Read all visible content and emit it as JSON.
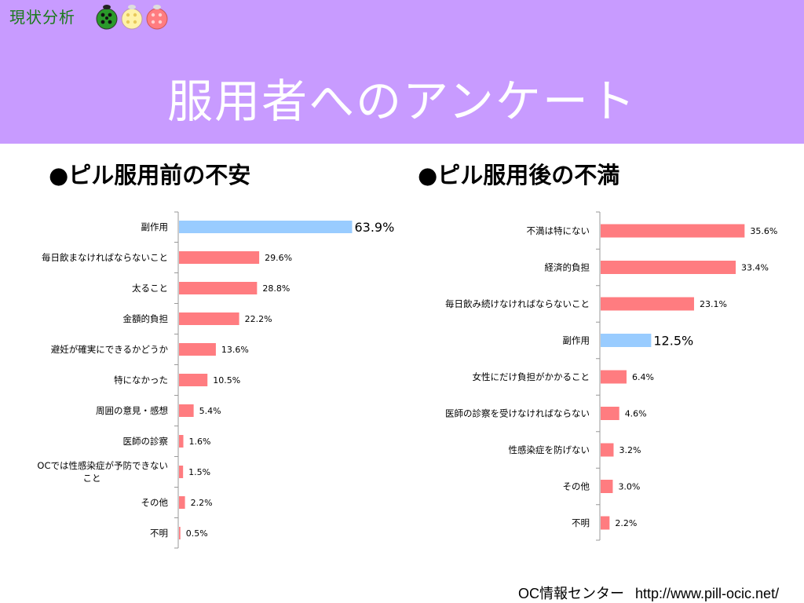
{
  "header": {
    "section_label": "現状分析",
    "title": "服用者へのアンケート",
    "background_color": "#c89bff"
  },
  "chart_data": [
    {
      "type": "bar",
      "orientation": "horizontal",
      "title": "●ピル服用前の不安",
      "categories": [
        "副作用",
        "毎日飲まなければならないこと",
        "太ること",
        "金額的負担",
        "避妊が確実にできるかどうか",
        "特になかった",
        "周囲の意見・感想",
        "医師の診察",
        "OCでは性感染症が予防できないこと",
        "その他",
        "不明"
      ],
      "category_lines": [
        [
          "副作用"
        ],
        [
          "毎日飲まなければならないこと"
        ],
        [
          "太ること"
        ],
        [
          "金額的負担"
        ],
        [
          "避妊が確実にできるかどうか"
        ],
        [
          "特になかった"
        ],
        [
          "周囲の意見・感想"
        ],
        [
          "医師の診察"
        ],
        [
          "OCでは性感染症が予防できない",
          "こと"
        ],
        [
          "その他"
        ],
        [
          "不明"
        ]
      ],
      "values": [
        63.9,
        29.6,
        28.8,
        22.2,
        13.6,
        10.5,
        5.4,
        1.6,
        1.5,
        2.2,
        0.5
      ],
      "value_labels": [
        "63.9%",
        "29.6%",
        "28.8%",
        "22.2%",
        "13.6%",
        "10.5%",
        "5.4%",
        "1.6%",
        "1.5%",
        "2.2%",
        "0.5%"
      ],
      "highlight_index": 0,
      "colors": {
        "bar": "#ff7c80",
        "highlight": "#99ccff"
      }
    },
    {
      "type": "bar",
      "orientation": "horizontal",
      "title": "●ピル服用後の不満",
      "categories": [
        "不満は特にない",
        "経済的負担",
        "毎日飲み続けなければならないこと",
        "副作用",
        "女性にだけ負担がかかること",
        "医師の診察を受けなければならない",
        "性感染症を防げない",
        "その他",
        "不明"
      ],
      "category_lines": [
        [
          "不満は特にない"
        ],
        [
          "経済的負担"
        ],
        [
          "毎日飲み続けなければならないこと"
        ],
        [
          "副作用"
        ],
        [
          "女性にだけ負担がかかること"
        ],
        [
          "医師の診察を受けなければならない"
        ],
        [
          "性感染症を防げない"
        ],
        [
          "その他"
        ],
        [
          "不明"
        ]
      ],
      "values": [
        35.6,
        33.4,
        23.1,
        12.5,
        6.4,
        4.6,
        3.2,
        3.0,
        2.2
      ],
      "value_labels": [
        "35.6%",
        "33.4%",
        "23.1%",
        "12.5%",
        "6.4%",
        "4.6%",
        "3.2%",
        "3.0%",
        "2.2%"
      ],
      "highlight_index": 3,
      "colors": {
        "bar": "#ff7c80",
        "highlight": "#99ccff"
      }
    }
  ],
  "footer": {
    "org": "OC情報センター",
    "url": "http://www.pill-ocic.net/"
  }
}
